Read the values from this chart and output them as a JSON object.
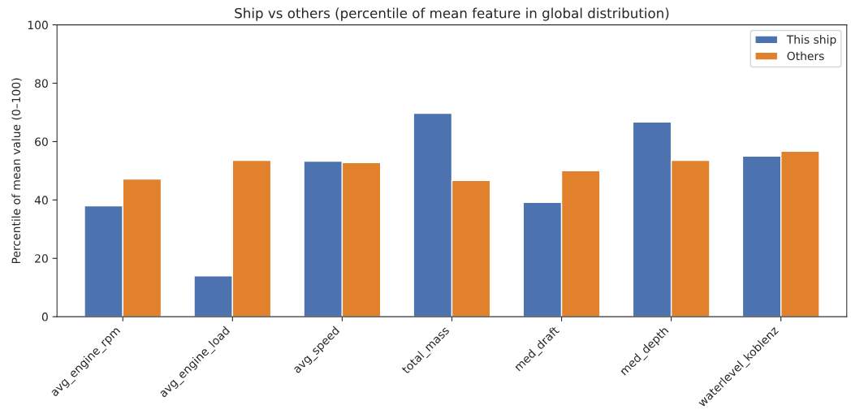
{
  "chart_data": {
    "type": "bar",
    "title": "Ship vs others (percentile of mean feature in global distribution)",
    "ylabel": "Percentile of mean value (0–100)",
    "categories": [
      "avg_engine_rpm",
      "avg_engine_load",
      "avg_speed",
      "total_mass",
      "med_draft",
      "med_depth",
      "waterlevel_koblenz"
    ],
    "series": [
      {
        "name": "This ship",
        "color": "#4c72b0",
        "values": [
          38,
          14,
          53.3,
          69.7,
          39.2,
          66.7,
          55
        ]
      },
      {
        "name": "Others",
        "color": "#e1812c",
        "values": [
          47.2,
          53.6,
          52.8,
          46.7,
          50,
          53.6,
          56.7
        ]
      }
    ],
    "ylim": [
      0,
      100
    ],
    "yticks": [
      0,
      20,
      40,
      60,
      80,
      100
    ],
    "grid": false,
    "legend": "top right"
  }
}
